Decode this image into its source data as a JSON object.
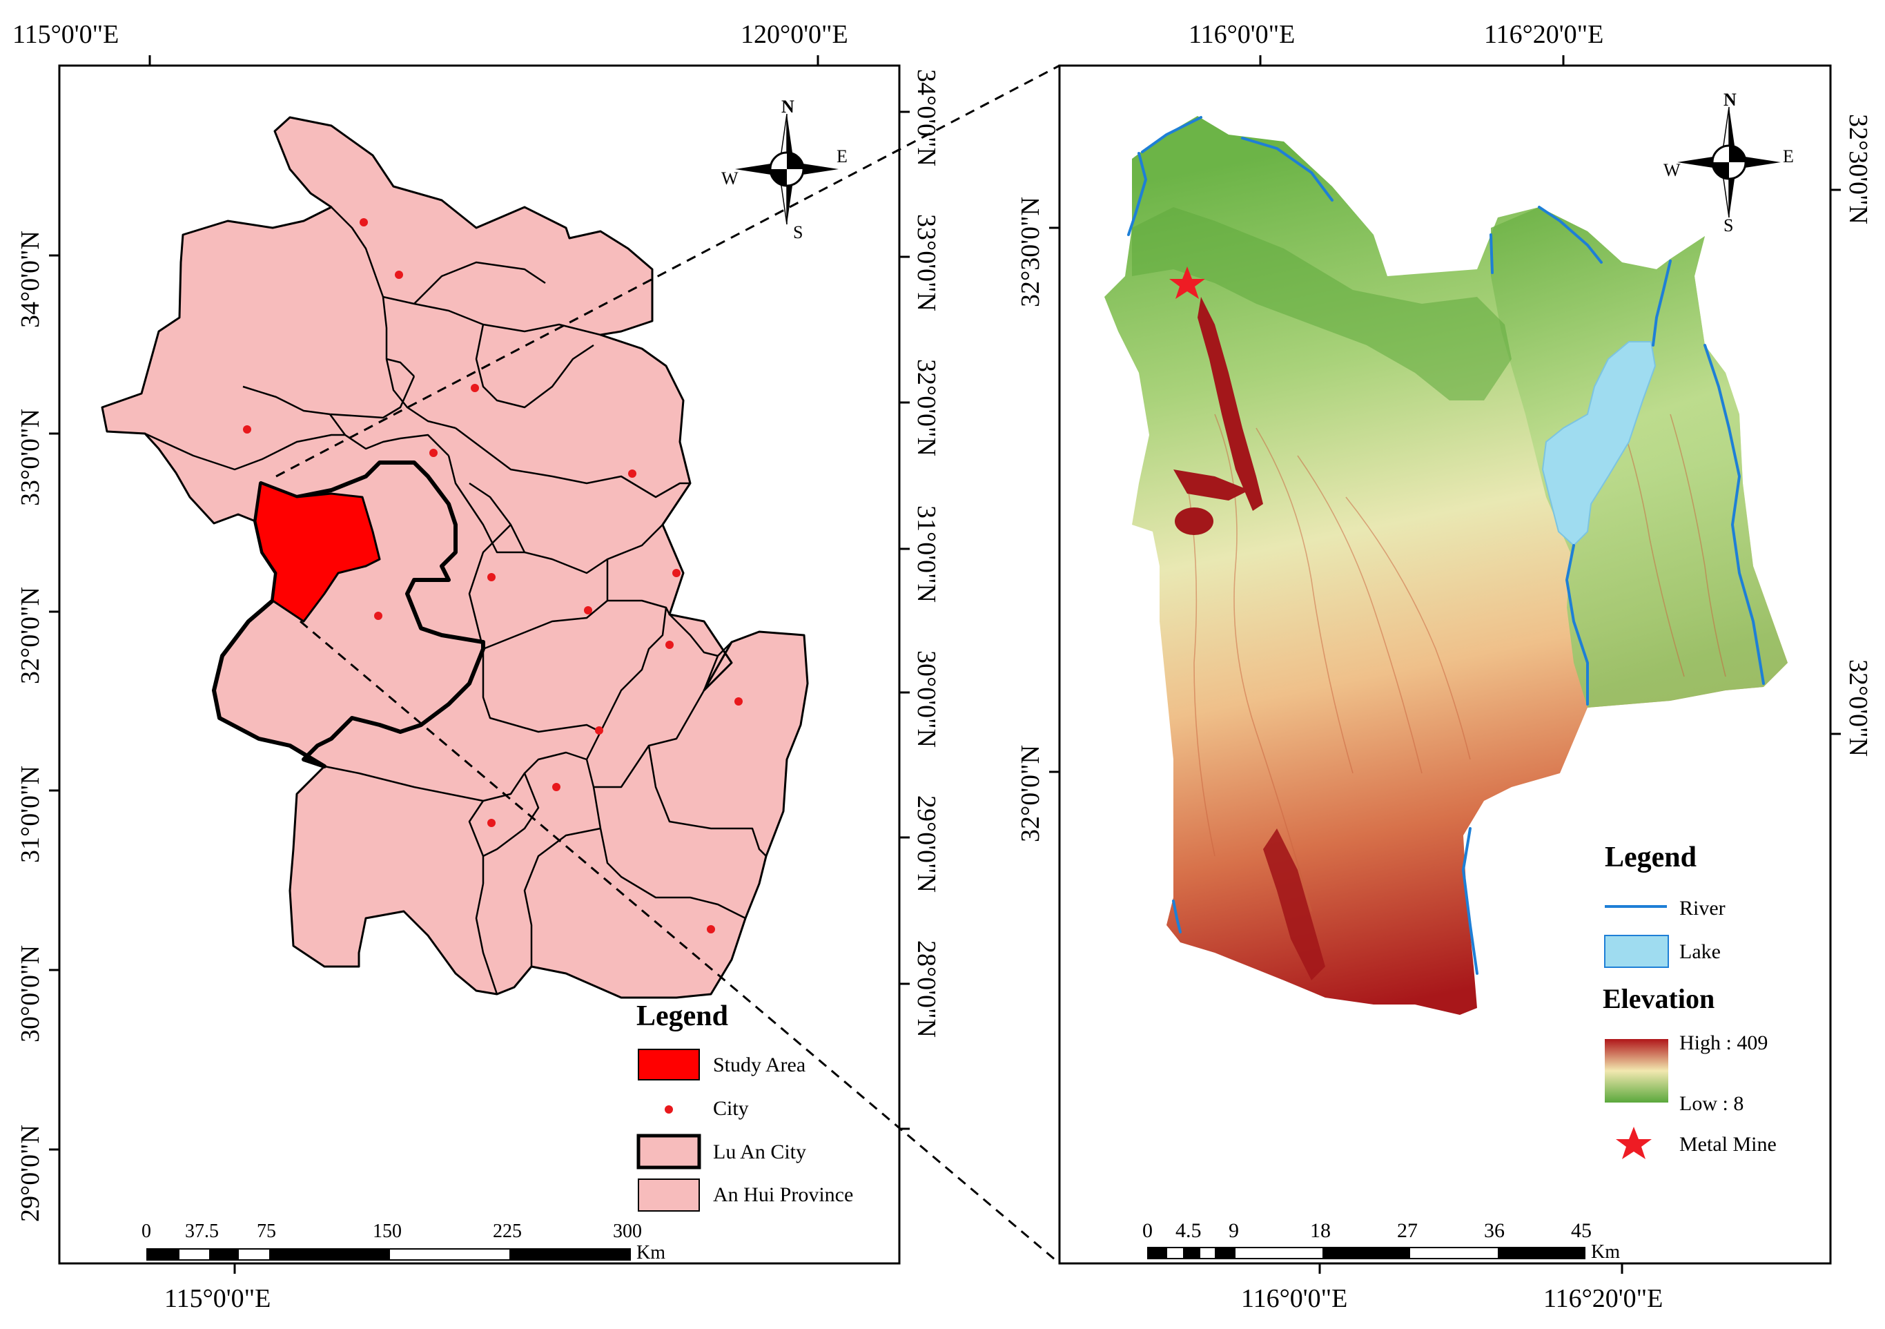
{
  "left_map": {
    "coords_top": [
      "115°0'0\"E",
      "120°0'0\"E"
    ],
    "coords_bottom": [
      "115°0'0\"E"
    ],
    "coords_left": [
      "34°0'0\"N",
      "33°0'0\"N",
      "32°0'0\"N",
      "31°0'0\"N",
      "30°0'0\"N",
      "29°0'0\"N"
    ],
    "coords_right": [
      "34°0'0\"N",
      "33°0'0\"N",
      "32°0'0\"N",
      "31°0'0\"N",
      "30°0'0\"N",
      "29°0'0\"N",
      "28°0'0\"N"
    ],
    "legend": {
      "title": "Legend",
      "items": [
        "Study Area",
        "City",
        "Lu An City",
        "An Hui Province"
      ]
    },
    "scalebar": {
      "ticks": [
        "0",
        "37.5",
        "75",
        "150",
        "225",
        "300"
      ],
      "unit": "Km"
    },
    "compass": {
      "n": "N",
      "s": "S",
      "e": "E",
      "w": "W"
    }
  },
  "right_map": {
    "coords_top": [
      "116°0'0\"E",
      "116°20'0\"E"
    ],
    "coords_bottom": [
      "116°0'0\"E",
      "116°20'0\"E"
    ],
    "coords_left": [
      "32°30'0\"N",
      "32°0'0\"N"
    ],
    "coords_right": [
      "32°30'0\"N",
      "32°0'0\"N"
    ],
    "legend": {
      "title": "Legend",
      "river": "River",
      "lake": "Lake",
      "elevation_title": "Elevation",
      "high": "High : 409",
      "low": "Low : 8",
      "mine": "Metal Mine"
    },
    "scalebar": {
      "ticks": [
        "0",
        "4.5",
        "9",
        "18",
        "27",
        "36",
        "45"
      ],
      "unit": "Km"
    },
    "compass": {
      "n": "N",
      "s": "S",
      "e": "E",
      "w": "W"
    }
  },
  "colors": {
    "province_fill": "#f7bcbc",
    "study_area": "#ff0000",
    "city_dot": "#e8181c",
    "river": "#1e7fd6",
    "lake": "#9fdcf0",
    "elev_high": "#b0161a",
    "elev_mid": "#f2e8b0",
    "elev_low": "#5aa83c"
  }
}
